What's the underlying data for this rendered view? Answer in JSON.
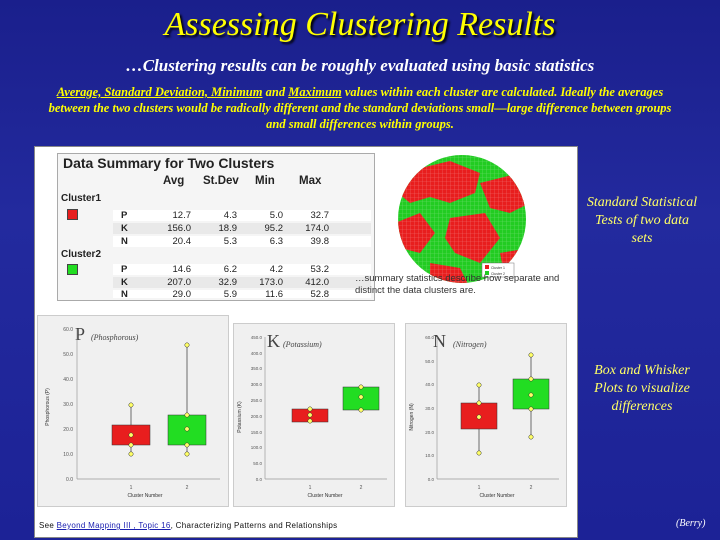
{
  "title": "Assessing Clustering Results",
  "subtitle": "…Clustering results can be roughly evaluated using basic statistics",
  "description": {
    "part1": "Average, Standard Deviation, Minimum",
    "part2": " and ",
    "part3": "Maximum",
    "part4": " values within each cluster are calculated. Ideally the averages between the two clusters would be radically different and the standard deviations small—large difference between groups and small differences within groups."
  },
  "side_labels": {
    "stat_tests": "Standard Statistical Tests of two data sets",
    "box_whisker": "Box and Whisker Plots to visualize differences"
  },
  "table": {
    "title": "Data Summary for Two Clusters",
    "headers": [
      "Avg",
      "St.Dev",
      "Min",
      "Max"
    ],
    "clusters": [
      {
        "name": "Cluster1",
        "color": "#e81e1e",
        "rows": [
          {
            "label": "P",
            "values": [
              "12.7",
              "4.3",
              "5.0",
              "32.7"
            ]
          },
          {
            "label": "K",
            "values": [
              "156.0",
              "18.9",
              "95.2",
              "174.0"
            ]
          },
          {
            "label": "N",
            "values": [
              "20.4",
              "5.3",
              "6.3",
              "39.8"
            ]
          }
        ]
      },
      {
        "name": "Cluster2",
        "color": "#22dd22",
        "rows": [
          {
            "label": "P",
            "values": [
              "14.6",
              "6.2",
              "4.2",
              "53.2"
            ]
          },
          {
            "label": "K",
            "values": [
              "207.0",
              "32.9",
              "173.0",
              "412.0"
            ]
          },
          {
            "label": "N",
            "values": [
              "29.0",
              "5.9",
              "11.6",
              "52.8"
            ]
          }
        ]
      }
    ]
  },
  "caption": "…summary statistics describe how separate and distinct the data clusters are.",
  "plots": [
    {
      "letter": "P",
      "name": "(Phosphorous)",
      "ylabel": "Phosphorous (P)",
      "xlabel": "Cluster Number",
      "ticks": [
        "60.0",
        "50.0",
        "40.0",
        "30.0",
        "20.0",
        "10.0",
        "0.0"
      ],
      "xticks": [
        "1",
        "2"
      ]
    },
    {
      "letter": "K",
      "name": "(Potassium)",
      "ylabel": "Potassium (K)",
      "xlabel": "Cluster Number",
      "ticks": [
        "450.0",
        "400.0",
        "350.0",
        "300.0",
        "250.0",
        "200.0",
        "150.0",
        "100.0",
        "50.0",
        "0.0"
      ],
      "xticks": [
        "1",
        "2"
      ]
    },
    {
      "letter": "N",
      "name": "(Nitrogen)",
      "ylabel": "Nitrogen (N)",
      "xlabel": "Cluster Number",
      "ticks": [
        "60.0",
        "50.0",
        "40.0",
        "30.0",
        "20.0",
        "10.0",
        "0.0"
      ],
      "xticks": [
        "1",
        "2"
      ]
    }
  ],
  "legend": {
    "item1": "Cluster 1",
    "item2": "Cluster 2"
  },
  "footer": {
    "prefix": "See ",
    "link": "Beyond Mapping III , Topic 16",
    "suffix": ", Characterizing Patterns and Relationships"
  },
  "author": "(Berry)",
  "colors": {
    "cluster1": "#e81e1e",
    "cluster2": "#22dd22",
    "title": "#ffff00",
    "background": "#1f2598"
  }
}
